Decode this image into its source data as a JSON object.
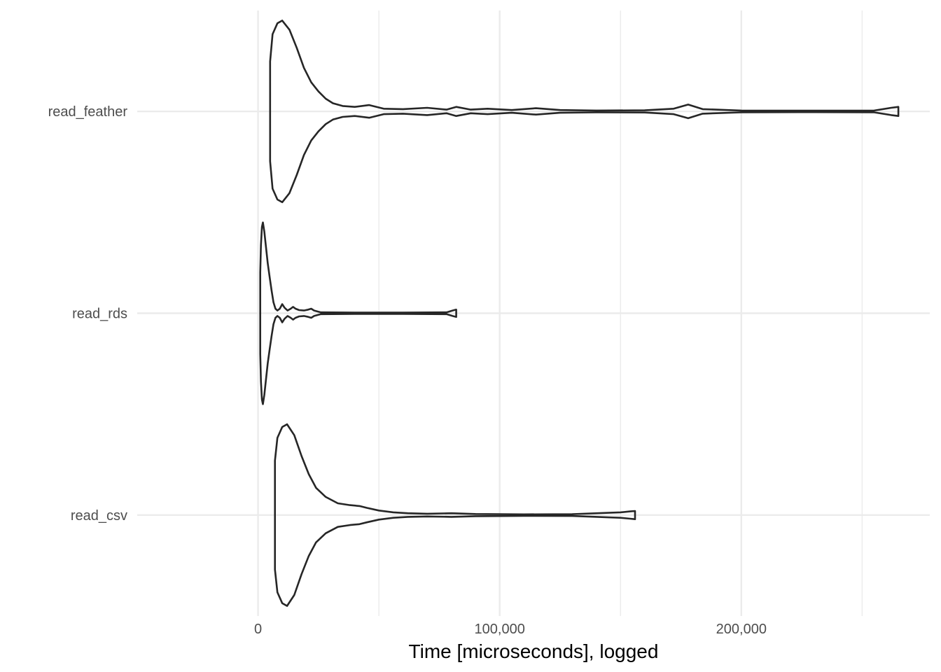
{
  "chart_data": {
    "type": "violin",
    "orientation": "horizontal",
    "xlabel": "Time [microseconds], logged",
    "ylabel": "",
    "xlim": [
      -50000,
      278000
    ],
    "x_ticks": [
      0,
      100000,
      200000
    ],
    "x_tick_labels": [
      "0",
      "100,000",
      "200,000"
    ],
    "x_minor_ticks": [
      50000,
      150000,
      250000
    ],
    "categories": [
      "read_csv",
      "read_rds",
      "read_feather"
    ],
    "grid": "major and minor vertical, major horizontal",
    "series": [
      {
        "category": "read_feather",
        "range": [
          5000,
          265000
        ],
        "density_profile": [
          [
            5000,
            0.55
          ],
          [
            6000,
            0.85
          ],
          [
            8000,
            0.97
          ],
          [
            10000,
            1.0
          ],
          [
            13000,
            0.9
          ],
          [
            16000,
            0.7
          ],
          [
            19000,
            0.48
          ],
          [
            22000,
            0.32
          ],
          [
            25000,
            0.22
          ],
          [
            28000,
            0.14
          ],
          [
            31000,
            0.09
          ],
          [
            35000,
            0.06
          ],
          [
            40000,
            0.05
          ],
          [
            46000,
            0.07
          ],
          [
            52000,
            0.03
          ],
          [
            60000,
            0.025
          ],
          [
            70000,
            0.04
          ],
          [
            78000,
            0.02
          ],
          [
            82000,
            0.05
          ],
          [
            88000,
            0.02
          ],
          [
            95000,
            0.03
          ],
          [
            105000,
            0.015
          ],
          [
            115000,
            0.035
          ],
          [
            125000,
            0.015
          ],
          [
            140000,
            0.01
          ],
          [
            160000,
            0.012
          ],
          [
            172000,
            0.03
          ],
          [
            178000,
            0.075
          ],
          [
            184000,
            0.025
          ],
          [
            200000,
            0.01
          ],
          [
            230000,
            0.008
          ],
          [
            255000,
            0.01
          ],
          [
            262000,
            0.04
          ],
          [
            265000,
            0.05
          ]
        ]
      },
      {
        "category": "read_rds",
        "range": [
          900,
          82000
        ],
        "density_profile": [
          [
            900,
            0.45
          ],
          [
            1200,
            0.75
          ],
          [
            1600,
            0.95
          ],
          [
            2000,
            1.0
          ],
          [
            2600,
            0.9
          ],
          [
            3200,
            0.75
          ],
          [
            4000,
            0.55
          ],
          [
            4800,
            0.4
          ],
          [
            5600,
            0.25
          ],
          [
            6400,
            0.12
          ],
          [
            7200,
            0.05
          ],
          [
            8000,
            0.03
          ],
          [
            9000,
            0.05
          ],
          [
            10000,
            0.1
          ],
          [
            11000,
            0.06
          ],
          [
            12200,
            0.03
          ],
          [
            13500,
            0.05
          ],
          [
            14500,
            0.07
          ],
          [
            15500,
            0.05
          ],
          [
            17000,
            0.035
          ],
          [
            19000,
            0.03
          ],
          [
            20800,
            0.04
          ],
          [
            22000,
            0.05
          ],
          [
            23200,
            0.03
          ],
          [
            26000,
            0.01
          ],
          [
            40000,
            0.008
          ],
          [
            60000,
            0.008
          ],
          [
            78000,
            0.01
          ],
          [
            80500,
            0.03
          ],
          [
            82000,
            0.04
          ]
        ]
      },
      {
        "category": "read_csv",
        "range": [
          7000,
          156000
        ],
        "density_profile": [
          [
            7000,
            0.6
          ],
          [
            8000,
            0.85
          ],
          [
            10000,
            0.97
          ],
          [
            12000,
            1.0
          ],
          [
            15000,
            0.88
          ],
          [
            18000,
            0.65
          ],
          [
            21000,
            0.45
          ],
          [
            24000,
            0.3
          ],
          [
            28000,
            0.2
          ],
          [
            33000,
            0.13
          ],
          [
            38000,
            0.11
          ],
          [
            42000,
            0.1
          ],
          [
            45000,
            0.08
          ],
          [
            50000,
            0.05
          ],
          [
            56000,
            0.03
          ],
          [
            62000,
            0.02
          ],
          [
            70000,
            0.015
          ],
          [
            80000,
            0.02
          ],
          [
            90000,
            0.012
          ],
          [
            110000,
            0.008
          ],
          [
            130000,
            0.01
          ],
          [
            145000,
            0.025
          ],
          [
            150000,
            0.03
          ],
          [
            154000,
            0.04
          ],
          [
            156000,
            0.045
          ]
        ]
      }
    ]
  }
}
